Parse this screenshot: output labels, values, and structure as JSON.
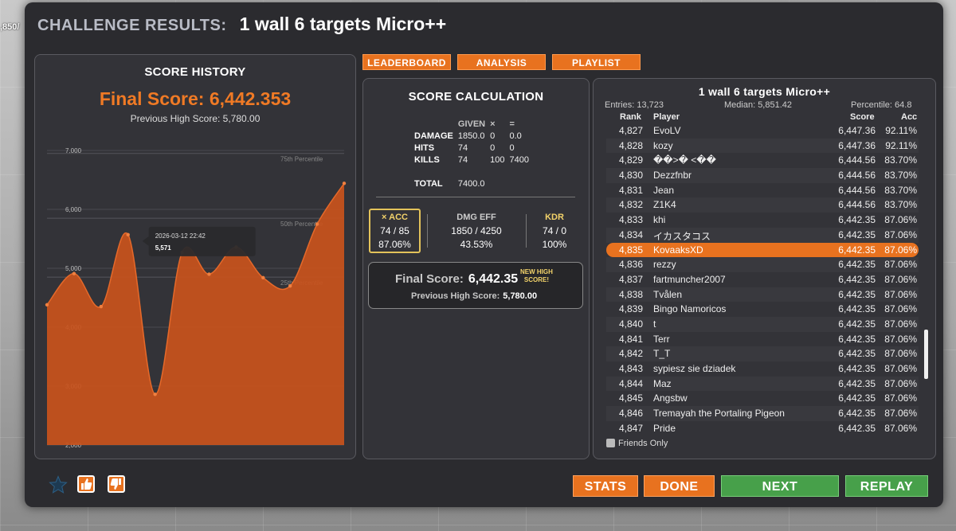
{
  "background": {
    "fragment": ",850/"
  },
  "title": {
    "label": "CHALLENGE RESULTS:",
    "name": "1 wall 6 targets Micro++"
  },
  "history": {
    "title": "SCORE HISTORY",
    "final_score": "Final Score: 6,442.353",
    "previous_high": "Previous High Score: 5,780.00",
    "tooltip": {
      "date": "2026-03-12 22:42",
      "value": "5,571"
    },
    "chart_data": {
      "type": "area",
      "y_ticks": [
        "7,000",
        "6,000",
        "5,000",
        "4,000",
        "3,000",
        "2,000"
      ],
      "ylim": [
        2000,
        7000
      ],
      "percentiles": [
        {
          "label": "75th Percentile",
          "value": 6950
        },
        {
          "label": "50th Percentile",
          "value": 5850
        },
        {
          "label": "25th Percentile",
          "value": 4850
        }
      ],
      "values": [
        4380,
        4910,
        4350,
        5570,
        2860,
        5270,
        4900,
        5360,
        4840,
        4700,
        5750,
        6442
      ],
      "color": "#c9521c"
    }
  },
  "tabs": [
    "LEADERBOARD",
    "ANALYSIS",
    "PLAYLIST"
  ],
  "calc": {
    "title": "SCORE CALCULATION",
    "headers": [
      "",
      "GIVEN",
      "×",
      "="
    ],
    "rows": [
      [
        "DAMAGE",
        "1850.0",
        "0",
        "0.0"
      ],
      [
        "HITS",
        "74",
        "0",
        "0"
      ],
      [
        "KILLS",
        "74",
        "100",
        "7400"
      ]
    ],
    "total_label": "TOTAL",
    "total_value": "7400.0",
    "acc": {
      "label": "× ACC",
      "v1": "74 / 85",
      "v2": "87.06%"
    },
    "dmg": {
      "label": "DMG EFF",
      "v1": "1850 / 4250",
      "v2": "43.53%"
    },
    "kdr": {
      "label": "KDR",
      "v1": "74 / 0",
      "v2": "100%"
    },
    "final_label": "Final Score:",
    "final_value": "6,442.35",
    "new_high_1": "NEW HIGH",
    "new_high_2": "SCORE!",
    "prev_label": "Previous High Score:",
    "prev_value": "5,780.00"
  },
  "board": {
    "title": "1 wall 6 targets Micro++",
    "entries": "Entries: 13,723",
    "median": "Median: 5,851.42",
    "percentile": "Percentile: 64.8",
    "cols": {
      "rank": "Rank",
      "player": "Player",
      "score": "Score",
      "acc": "Acc"
    },
    "rows": [
      [
        "4,827",
        "EvoLV",
        "6,447.36",
        "92.11%"
      ],
      [
        "4,828",
        "kozy",
        "6,447.36",
        "92.11%"
      ],
      [
        "4,829",
        "��>� <��",
        "6,444.56",
        "83.70%"
      ],
      [
        "4,830",
        "Dezzfnbr",
        "6,444.56",
        "83.70%"
      ],
      [
        "4,831",
        "Jean",
        "6,444.56",
        "83.70%"
      ],
      [
        "4,832",
        "Z1K4",
        "6,444.56",
        "83.70%"
      ],
      [
        "4,833",
        "khi",
        "6,442.35",
        "87.06%"
      ],
      [
        "4,834",
        "イカスタコス",
        "6,442.35",
        "87.06%"
      ],
      [
        "4,835",
        "KovaaksXD",
        "6,442.35",
        "87.06%"
      ],
      [
        "4,836",
        "rezzy",
        "6,442.35",
        "87.06%"
      ],
      [
        "4,837",
        "fartmuncher2007",
        "6,442.35",
        "87.06%"
      ],
      [
        "4,838",
        "Tvålen",
        "6,442.35",
        "87.06%"
      ],
      [
        "4,839",
        "Bingo Namoricos",
        "6,442.35",
        "87.06%"
      ],
      [
        "4,840",
        "t",
        "6,442.35",
        "87.06%"
      ],
      [
        "4,841",
        "Terr",
        "6,442.35",
        "87.06%"
      ],
      [
        "4,842",
        "T_T",
        "6,442.35",
        "87.06%"
      ],
      [
        "4,843",
        "sypiesz sie dziadek",
        "6,442.35",
        "87.06%"
      ],
      [
        "4,844",
        "Maz",
        "6,442.35",
        "87.06%"
      ],
      [
        "4,845",
        "Angsbw",
        "6,442.35",
        "87.06%"
      ],
      [
        "4,846",
        "Tremayah the Portaling Pigeon",
        "6,442.35",
        "87.06%"
      ],
      [
        "4,847",
        "Pride",
        "6,442.35",
        "87.06%"
      ]
    ],
    "highlight_rank": "4,835",
    "friends_only": "Friends Only"
  },
  "buttons": {
    "stats": "STATS",
    "done": "DONE",
    "next": "NEXT",
    "replay": "REPLAY"
  }
}
